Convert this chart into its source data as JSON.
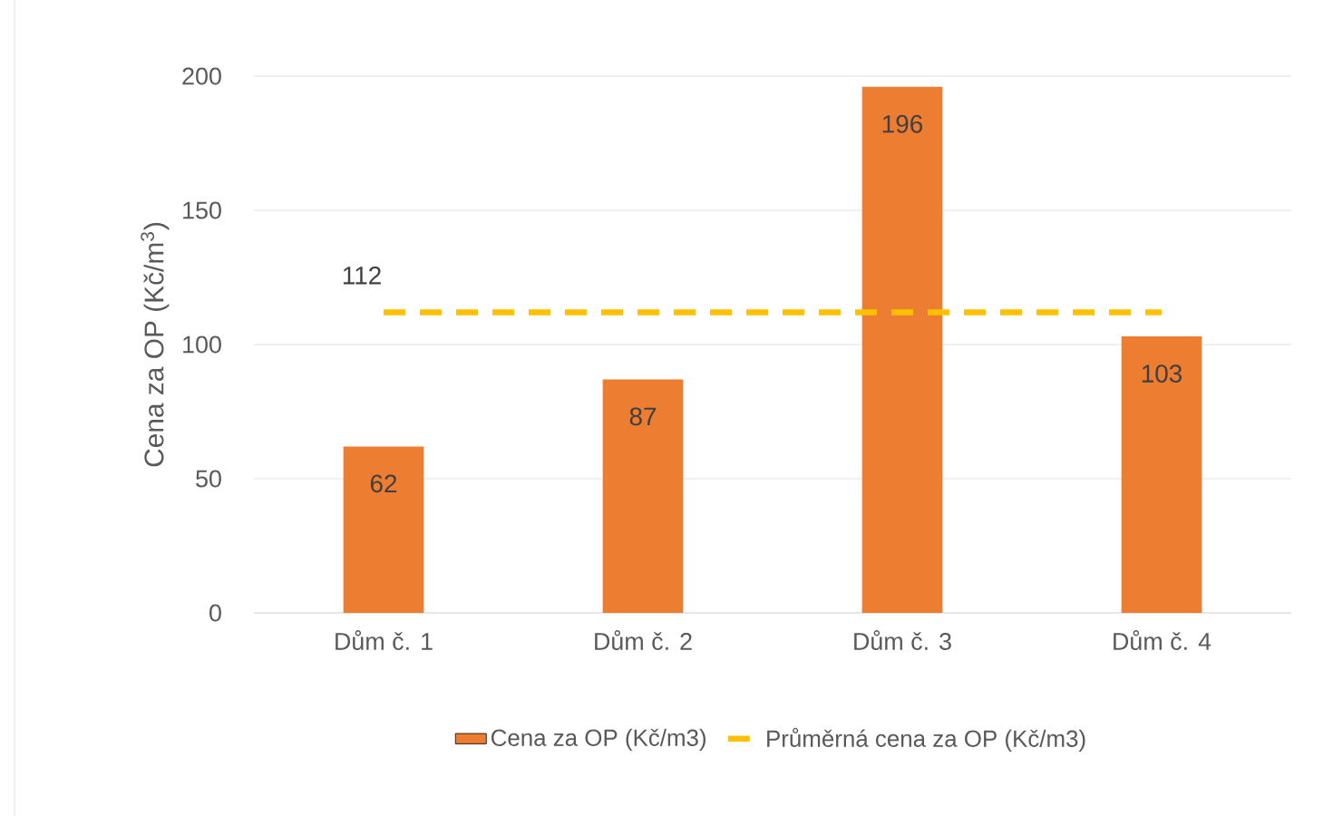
{
  "chart_data": {
    "type": "bar",
    "ylabel": "Cena za OP (Kč/m$^{3}$)",
    "categories": [
      "Dům č. 1",
      "Dům č. 2",
      "Dům č. 3",
      "Dům č. 4"
    ],
    "series": [
      {
        "name": "Cena za OP (Kč/m3)",
        "color": "#ed7d31",
        "values": [
          62,
          87,
          196,
          103
        ],
        "data_labels": true
      },
      {
        "name": "Průměrná cena za OP (Kč/m3)",
        "type": "line",
        "color": "#ffc000",
        "line_style": "dashed",
        "marker": "none",
        "values": [
          112,
          112,
          112,
          112
        ],
        "value_labels": [
          "112",
          null,
          null,
          null
        ]
      }
    ],
    "ylim": [
      0,
      200
    ],
    "yticks": [
      0,
      50,
      100,
      150,
      200
    ],
    "grid": "y",
    "legend": "bottom"
  }
}
